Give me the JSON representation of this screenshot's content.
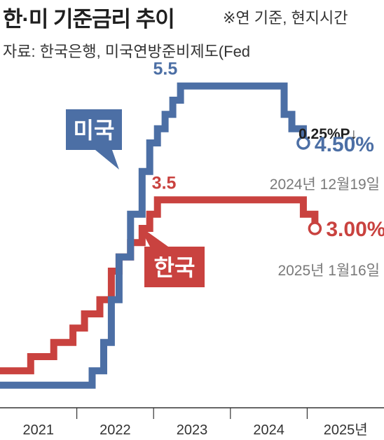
{
  "header": {
    "title": "한·미 기준금리 추이",
    "note": "※연 기준, 현지시간",
    "source": "자료: 한국은행, 미국연방준비제도(Fed"
  },
  "chart_data": {
    "type": "line",
    "step": true,
    "title": "한·미 기준금리 추이",
    "xlabel": "",
    "ylabel": "",
    "x_tick_labels": [
      "2021",
      "2022",
      "2023",
      "2024",
      "2025년"
    ],
    "xlim": [
      2021.0,
      2026.0
    ],
    "ylim": [
      0,
      6.0
    ],
    "grid": false,
    "legend": "inline labels",
    "colors": {
      "us": "#4c6fa5",
      "kr": "#c9423f",
      "annotation_gray": "#7a7a7a",
      "dark": "#1f1f1f"
    },
    "series": [
      {
        "name": "미국",
        "color": "#4c6fa5",
        "x": [
          2021.0,
          2022.2,
          2022.35,
          2022.45,
          2022.55,
          2022.7,
          2022.85,
          2022.95,
          2023.05,
          2023.15,
          2023.25,
          2023.35,
          2023.55,
          2024.7,
          2024.8,
          2024.95
        ],
        "y": [
          0.25,
          0.5,
          1.0,
          1.75,
          2.5,
          3.25,
          4.0,
          4.5,
          4.75,
          5.0,
          5.25,
          5.5,
          5.5,
          5.0,
          4.75,
          4.5
        ]
      },
      {
        "name": "한국",
        "color": "#c9423f",
        "x": [
          2021.0,
          2021.4,
          2021.7,
          2021.95,
          2022.1,
          2022.3,
          2022.45,
          2022.55,
          2022.7,
          2022.85,
          2022.95,
          2023.05,
          2024.8,
          2024.95,
          2025.1
        ],
        "y": [
          0.5,
          0.75,
          1.0,
          1.25,
          1.5,
          1.75,
          2.25,
          2.5,
          2.75,
          3.0,
          3.25,
          3.5,
          3.5,
          3.25,
          3.0
        ]
      }
    ],
    "annotations": {
      "us_label": "미국",
      "kr_label": "한국",
      "us_peak": "5.5",
      "kr_peak": "3.5",
      "us_cut": "0.25%P↓",
      "us_latest": "4.50%",
      "us_date": "2024년 12월19일",
      "kr_latest": "3.00%",
      "kr_date": "2025년 1월16일"
    }
  }
}
